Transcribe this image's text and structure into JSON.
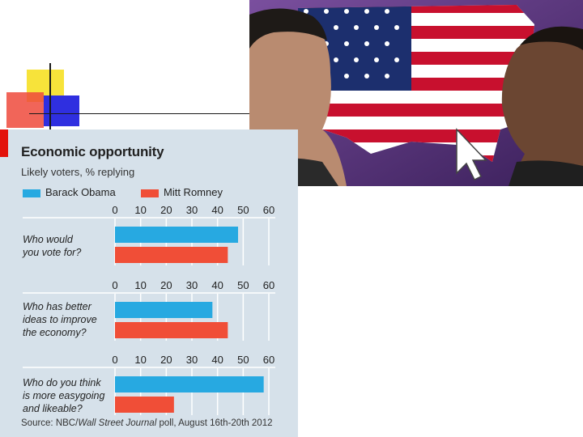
{
  "colors": {
    "obama": "#27a9e1",
    "romney": "#f04e37",
    "panel_bg": "#d6e1ea",
    "accent": "#e3120b"
  },
  "chart_data": {
    "type": "bar",
    "title": "Economic opportunity",
    "subtitle": "Likely voters, % replying",
    "legend": [
      "Barack Obama",
      "Mitt Romney"
    ],
    "axis_ticks": [
      "0",
      "10",
      "20",
      "30",
      "40",
      "50",
      "60"
    ],
    "xlim": [
      0,
      60
    ],
    "categories": [
      {
        "lines": [
          "Who would",
          "you vote for?"
        ]
      },
      {
        "lines": [
          "Who has better",
          "ideas to improve",
          "the economy?"
        ]
      },
      {
        "lines": [
          "Who do you think",
          "is more easygoing",
          "and likeable?"
        ]
      }
    ],
    "series": [
      {
        "name": "Barack Obama",
        "values": [
          48,
          38,
          58
        ]
      },
      {
        "name": "Mitt Romney",
        "values": [
          44,
          44,
          23
        ]
      }
    ],
    "source_prefix": "Source: NBC/",
    "source_italic": "Wall Street Journal",
    "source_suffix": " poll, August 16th-20th 2012"
  }
}
